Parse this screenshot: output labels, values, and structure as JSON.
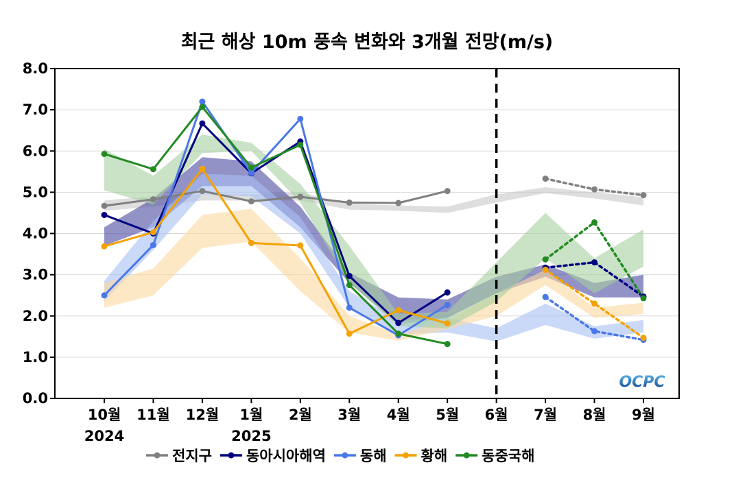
{
  "chart_data": {
    "type": "line",
    "title": "최근 해상 10m 풍속 변화와 3개월 전망(m/s)",
    "xlabel": "",
    "ylabel": "",
    "ylim": [
      0,
      8
    ],
    "yticks": [
      "0.0",
      "1.0",
      "2.0",
      "3.0",
      "4.0",
      "5.0",
      "6.0",
      "7.0",
      "8.0"
    ],
    "categories": [
      "10월",
      "11월",
      "12월",
      "1월",
      "2월",
      "3월",
      "4월",
      "5월",
      "6월",
      "7월",
      "8월",
      "9월"
    ],
    "year_labels": [
      {
        "index": 0,
        "label": "2024"
      },
      {
        "index": 3,
        "label": "2025"
      }
    ],
    "forecast_divider_index": 8,
    "grid": true,
    "legend_position": "bottom",
    "logo_text": "OCPC",
    "series": [
      {
        "name": "전지구",
        "color": "#808080",
        "band_color": "#c8c8c8",
        "observed": [
          4.67,
          4.83,
          5.03,
          4.78,
          4.89,
          4.75,
          4.74,
          5.03,
          null,
          null,
          null,
          null
        ],
        "forecast": [
          null,
          null,
          null,
          null,
          null,
          null,
          null,
          null,
          null,
          5.33,
          5.07,
          4.93
        ],
        "band_lower": [
          4.55,
          4.65,
          4.8,
          4.8,
          4.8,
          4.58,
          4.55,
          4.5,
          4.75,
          4.98,
          4.85,
          4.68
        ],
        "band_upper": [
          4.8,
          4.9,
          4.95,
          4.95,
          5.0,
          4.72,
          4.68,
          4.65,
          4.95,
          5.12,
          5.0,
          4.88
        ]
      },
      {
        "name": "동아시아해역",
        "color": "#000080",
        "band_color": "#4a4aa0",
        "observed": [
          4.45,
          4.0,
          6.67,
          5.46,
          6.23,
          2.97,
          1.83,
          2.57,
          null,
          null,
          null,
          null
        ],
        "forecast": [
          null,
          null,
          null,
          null,
          null,
          null,
          null,
          null,
          null,
          3.17,
          3.3,
          2.47
        ],
        "band_lower": [
          3.7,
          4.15,
          5.15,
          5.15,
          4.15,
          2.8,
          1.8,
          1.95,
          2.55,
          2.95,
          2.45,
          2.45
        ],
        "band_upper": [
          4.15,
          4.85,
          5.85,
          5.75,
          4.65,
          3.05,
          2.45,
          2.4,
          2.95,
          3.25,
          2.8,
          3.0
        ]
      },
      {
        "name": "동해",
        "color": "#4a78e8",
        "band_color": "#a8bff5",
        "observed": [
          2.5,
          3.72,
          7.2,
          5.47,
          6.78,
          2.2,
          1.53,
          2.27,
          null,
          null,
          null,
          null
        ],
        "forecast": [
          null,
          null,
          null,
          null,
          null,
          null,
          null,
          null,
          null,
          2.46,
          1.63,
          1.42
        ],
        "band_lower": [
          2.35,
          3.6,
          4.95,
          4.9,
          4.0,
          2.2,
          1.55,
          1.6,
          1.38,
          1.78,
          1.45,
          1.6
        ],
        "band_upper": [
          2.85,
          4.3,
          5.45,
          5.4,
          4.4,
          2.6,
          1.9,
          1.95,
          1.7,
          2.3,
          1.75,
          1.9
        ]
      },
      {
        "name": "황해",
        "color": "#f4a200",
        "band_color": "#fcd8a0",
        "observed": [
          3.69,
          4.03,
          5.57,
          3.77,
          3.71,
          1.57,
          2.14,
          1.82,
          null,
          null,
          null,
          null
        ],
        "forecast": [
          null,
          null,
          null,
          null,
          null,
          null,
          null,
          null,
          null,
          3.12,
          2.3,
          1.47
        ],
        "band_lower": [
          2.2,
          2.5,
          3.65,
          3.8,
          2.6,
          1.6,
          1.4,
          1.68,
          2.0,
          2.75,
          1.95,
          2.05
        ],
        "band_upper": [
          2.8,
          3.15,
          4.45,
          4.6,
          3.4,
          2.0,
          1.55,
          1.9,
          2.55,
          3.12,
          2.2,
          2.32
        ]
      },
      {
        "name": "동중국해",
        "color": "#228b22",
        "band_color": "#a6cf9e",
        "observed": [
          5.93,
          5.56,
          7.07,
          5.6,
          6.15,
          2.75,
          1.57,
          1.32,
          null,
          null,
          null,
          null
        ],
        "forecast": [
          null,
          null,
          null,
          null,
          null,
          null,
          null,
          null,
          null,
          3.37,
          4.27,
          2.43
        ],
        "band_lower": [
          5.05,
          4.7,
          5.95,
          6.0,
          4.75,
          2.8,
          1.75,
          1.7,
          2.35,
          3.4,
          2.55,
          3.2
        ],
        "band_upper": [
          6.05,
          5.4,
          6.4,
          6.2,
          5.2,
          3.7,
          2.05,
          2.1,
          3.3,
          4.5,
          3.4,
          4.1
        ]
      }
    ]
  }
}
